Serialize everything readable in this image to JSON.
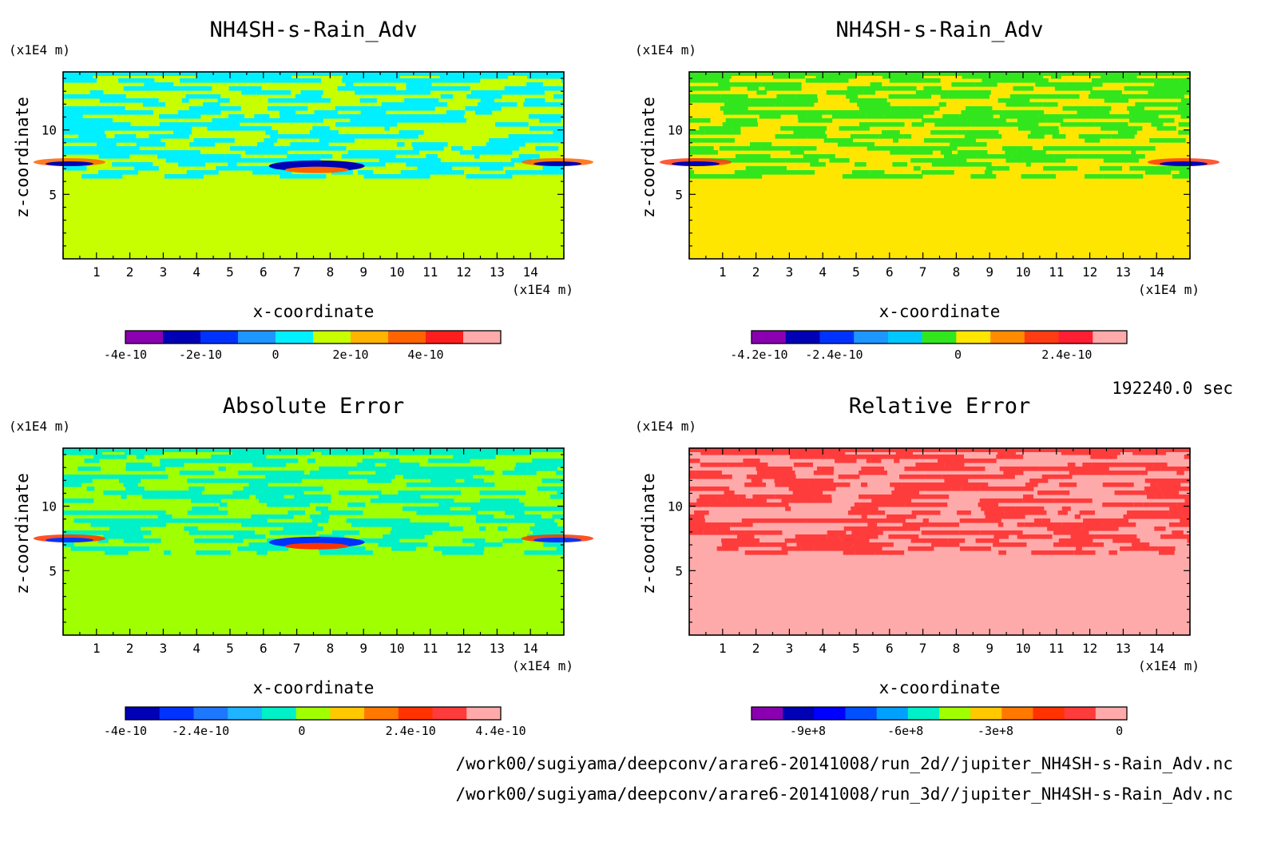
{
  "chart_data": [
    {
      "type": "heatmap",
      "title": "NH4SH-s-Rain_Adv",
      "xlabel": "x-coordinate",
      "ylabel": "z-coordinate",
      "x_unit": "(x1E4 m)",
      "y_unit": "(x1E4 m)",
      "xlim": [
        0,
        15
      ],
      "ylim": [
        0,
        14.5
      ],
      "xticks": [
        "1",
        "2",
        "3",
        "4",
        "5",
        "6",
        "7",
        "8",
        "9",
        "10",
        "11",
        "12",
        "13",
        "14"
      ],
      "yticks": [
        "5",
        "10"
      ],
      "colorbar_colors": [
        "#8a00b0",
        "#0000b4",
        "#0032ff",
        "#1e96ff",
        "#00f0ff",
        "#c8ff00",
        "#ffb400",
        "#ff6400",
        "#ff1e1e",
        "#ffaaaa"
      ],
      "colorbar_labels": [
        "-4e-10",
        "-2e-10",
        "0",
        "2e-10",
        "4e-10"
      ],
      "dominant_color": "#c8ff00",
      "pattern_color": "#00f0ff"
    },
    {
      "type": "heatmap",
      "title": "NH4SH-s-Rain_Adv",
      "xlabel": "x-coordinate",
      "ylabel": "z-coordinate",
      "x_unit": "(x1E4 m)",
      "y_unit": "(x1E4 m)",
      "xlim": [
        0,
        15
      ],
      "ylim": [
        0,
        14.5
      ],
      "xticks": [
        "1",
        "2",
        "3",
        "4",
        "5",
        "6",
        "7",
        "8",
        "9",
        "10",
        "11",
        "12",
        "13",
        "14"
      ],
      "yticks": [
        "5",
        "10"
      ],
      "colorbar_colors": [
        "#8a00b0",
        "#0000b4",
        "#0032ff",
        "#1e96ff",
        "#00c8ff",
        "#32e61e",
        "#ffe600",
        "#ff8c00",
        "#ff3c14",
        "#ff1e32",
        "#ffaaaa"
      ],
      "colorbar_labels": [
        "-4.2e-10",
        "-2.4e-10",
        "0",
        "2.4e-10"
      ],
      "dominant_color": "#ffe600",
      "pattern_color": "#32e61e"
    },
    {
      "type": "heatmap",
      "title": "Absolute Error",
      "xlabel": "x-coordinate",
      "ylabel": "z-coordinate",
      "x_unit": "(x1E4 m)",
      "y_unit": "(x1E4 m)",
      "xlim": [
        0,
        15
      ],
      "ylim": [
        0,
        14.5
      ],
      "xticks": [
        "1",
        "2",
        "3",
        "4",
        "5",
        "6",
        "7",
        "8",
        "9",
        "10",
        "11",
        "12",
        "13",
        "14"
      ],
      "yticks": [
        "5",
        "10"
      ],
      "colorbar_colors": [
        "#0000b4",
        "#0032ff",
        "#1e78ff",
        "#1eb4ff",
        "#00f0c8",
        "#a0ff00",
        "#ffc800",
        "#ff7800",
        "#ff3200",
        "#ff3c3c",
        "#ffaaaa"
      ],
      "colorbar_labels": [
        "-4e-10",
        "-2.4e-10",
        "0",
        "2.4e-10",
        "4.4e-10"
      ],
      "dominant_color": "#a0ff00",
      "pattern_color": "#00f0c8"
    },
    {
      "type": "heatmap",
      "title": "Relative Error",
      "xlabel": "x-coordinate",
      "ylabel": "z-coordinate",
      "x_unit": "(x1E4 m)",
      "y_unit": "(x1E4 m)",
      "xlim": [
        0,
        15
      ],
      "ylim": [
        0,
        14.5
      ],
      "xticks": [
        "1",
        "2",
        "3",
        "4",
        "5",
        "6",
        "7",
        "8",
        "9",
        "10",
        "11",
        "12",
        "13",
        "14"
      ],
      "yticks": [
        "5",
        "10"
      ],
      "colorbar_colors": [
        "#8a00b0",
        "#0000b4",
        "#0000ff",
        "#0050ff",
        "#00a0ff",
        "#00f0c8",
        "#a0ff00",
        "#ffc800",
        "#ff7800",
        "#ff3200",
        "#ff3c3c",
        "#ffaaaa"
      ],
      "colorbar_labels": [
        "-9e+8",
        "-6e+8",
        "-3e+8",
        "0"
      ],
      "dominant_color": "#ffaaaa",
      "pattern_color": "#ff3c3c"
    }
  ],
  "time_label": "192240.0 sec",
  "footer": {
    "line1": "/work00/sugiyama/deepconv/arare6-20141008/run_2d//jupiter_NH4SH-s-Rain_Adv.nc",
    "line2": "/work00/sugiyama/deepconv/arare6-20141008/run_3d//jupiter_NH4SH-s-Rain_Adv.nc"
  }
}
